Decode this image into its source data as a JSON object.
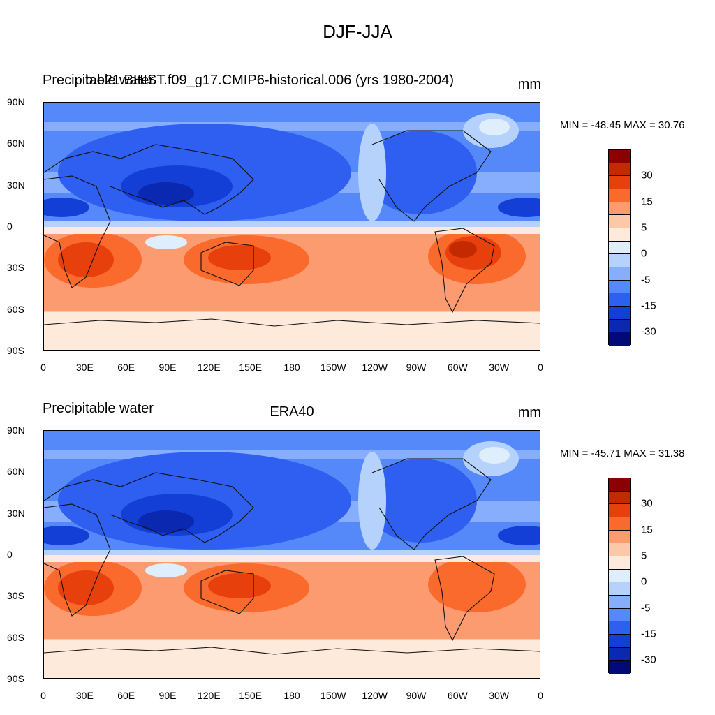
{
  "title": "DJF-JJA",
  "panels": [
    {
      "left_label": "Precipitable water",
      "overlay_label": "b.e21.BHIST.f09_g17.CMIP6-historical.006 (yrs 1980-2004)",
      "center_label": "",
      "units": "mm",
      "minmax": "MIN = -48.45 MAX =  30.76"
    },
    {
      "left_label": "Precipitable water",
      "overlay_label": "",
      "center_label": "ERA40",
      "units": "mm",
      "minmax": "MIN = -45.71 MAX =  31.38"
    }
  ],
  "lat_ticks": [
    "90N",
    "60N",
    "30N",
    "0",
    "30S",
    "60S",
    "90S"
  ],
  "lon_ticks": [
    "0",
    "30E",
    "60E",
    "90E",
    "120E",
    "150E",
    "180",
    "150W",
    "120W",
    "90W",
    "60W",
    "30W",
    "0"
  ],
  "colorbar": {
    "labels": [
      "30",
      "15",
      "5",
      "0",
      "-5",
      "-15",
      "-30"
    ],
    "colors": [
      "#8b0000",
      "#c42a00",
      "#e8400d",
      "#fa6a2c",
      "#fc9b70",
      "#fdc8a8",
      "#feeadb",
      "#dfeefc",
      "#b4d2fc",
      "#86aefc",
      "#5588f8",
      "#2e5ff0",
      "#133fd6",
      "#0a28b0",
      "#020a7a"
    ]
  }
}
